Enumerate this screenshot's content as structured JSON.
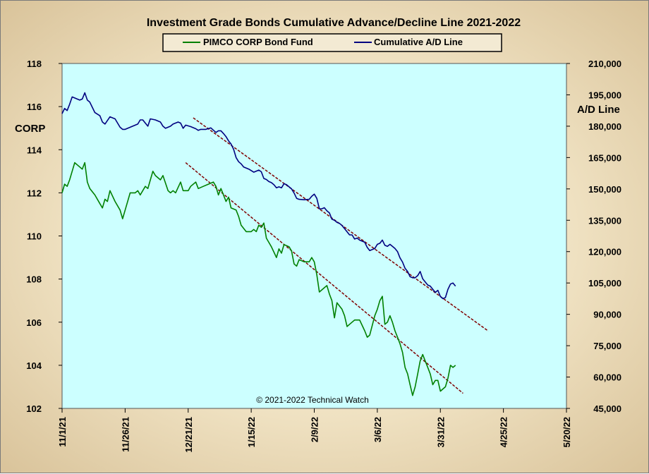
{
  "chart_data": {
    "type": "line",
    "title": "Investment  Grade Bonds Cumulative  Advance/Decline  Line 2021-2022",
    "copyright": "© 2021-2022  Technical  Watch",
    "legend_position": "top-center",
    "plot_background": "#ccffff",
    "x_axis": {
      "type": "date",
      "ticks": [
        "11/1/21",
        "11/26/21",
        "12/21/21",
        "1/15/22",
        "2/9/22",
        "3/6/22",
        "3/31/22",
        "4/25/22",
        "5/20/22"
      ],
      "range": [
        "2021-11-01",
        "2022-05-20"
      ]
    },
    "y_left": {
      "label": "CORP",
      "range": [
        102,
        118
      ],
      "ticks": [
        "102",
        "104",
        "106",
        "108",
        "110",
        "112",
        "114",
        "116",
        "118"
      ]
    },
    "y_right": {
      "label": "A/D Line",
      "range": [
        45000,
        210000
      ],
      "ticks": [
        "45,000",
        "60,000",
        "75,000",
        "90,000",
        "105,000",
        "120,000",
        "135,000",
        "150,000",
        "165,000",
        "180,000",
        "195,000",
        "210,000"
      ]
    },
    "series": [
      {
        "name": "PIMCO CORP Bond Fund",
        "axis": "left",
        "color": "#008000",
        "points": [
          [
            "2021-11-01",
            112.0
          ],
          [
            "2021-11-02",
            112.4
          ],
          [
            "2021-11-03",
            112.3
          ],
          [
            "2021-11-04",
            112.6
          ],
          [
            "2021-11-05",
            113.0
          ],
          [
            "2021-11-06",
            113.4
          ],
          [
            "2021-11-08",
            113.2
          ],
          [
            "2021-11-09",
            113.1
          ],
          [
            "2021-11-10",
            113.4
          ],
          [
            "2021-11-11",
            112.5
          ],
          [
            "2021-11-12",
            112.2
          ],
          [
            "2021-11-14",
            111.9
          ],
          [
            "2021-11-16",
            111.5
          ],
          [
            "2021-11-17",
            111.3
          ],
          [
            "2021-11-18",
            111.7
          ],
          [
            "2021-11-19",
            111.6
          ],
          [
            "2021-11-20",
            112.1
          ],
          [
            "2021-11-22",
            111.6
          ],
          [
            "2021-11-24",
            111.2
          ],
          [
            "2021-11-25",
            110.8
          ],
          [
            "2021-11-26",
            111.2
          ],
          [
            "2021-11-28",
            112.0
          ],
          [
            "2021-11-30",
            112.0
          ],
          [
            "2021-12-01",
            112.1
          ],
          [
            "2021-12-02",
            111.9
          ],
          [
            "2021-12-04",
            112.3
          ],
          [
            "2021-12-05",
            112.2
          ],
          [
            "2021-12-07",
            113.0
          ],
          [
            "2021-12-08",
            112.8
          ],
          [
            "2021-12-10",
            112.6
          ],
          [
            "2021-12-11",
            112.8
          ],
          [
            "2021-12-13",
            112.1
          ],
          [
            "2021-12-14",
            112.0
          ],
          [
            "2021-12-15",
            112.1
          ],
          [
            "2021-12-16",
            112.0
          ],
          [
            "2021-12-18",
            112.5
          ],
          [
            "2021-12-19",
            112.1
          ],
          [
            "2021-12-21",
            112.1
          ],
          [
            "2021-12-22",
            112.3
          ],
          [
            "2021-12-24",
            112.5
          ],
          [
            "2021-12-25",
            112.2
          ],
          [
            "2021-12-27",
            112.3
          ],
          [
            "2021-12-29",
            112.4
          ],
          [
            "2021-12-31",
            112.5
          ],
          [
            "2022-01-01",
            112.3
          ],
          [
            "2022-01-02",
            111.9
          ],
          [
            "2022-01-03",
            112.2
          ],
          [
            "2022-01-05",
            111.6
          ],
          [
            "2022-01-06",
            111.8
          ],
          [
            "2022-01-07",
            111.3
          ],
          [
            "2022-01-09",
            111.2
          ],
          [
            "2022-01-10",
            110.9
          ],
          [
            "2022-01-11",
            110.5
          ],
          [
            "2022-01-13",
            110.2
          ],
          [
            "2022-01-15",
            110.2
          ],
          [
            "2022-01-16",
            110.3
          ],
          [
            "2022-01-17",
            110.2
          ],
          [
            "2022-01-18",
            110.5
          ],
          [
            "2022-01-19",
            110.4
          ],
          [
            "2022-01-20",
            110.6
          ],
          [
            "2022-01-21",
            109.9
          ],
          [
            "2022-01-23",
            109.5
          ],
          [
            "2022-01-25",
            109.0
          ],
          [
            "2022-01-26",
            109.4
          ],
          [
            "2022-01-27",
            109.2
          ],
          [
            "2022-01-28",
            109.6
          ],
          [
            "2022-01-30",
            109.5
          ],
          [
            "2022-01-31",
            109.3
          ],
          [
            "2022-02-01",
            108.7
          ],
          [
            "2022-02-02",
            108.6
          ],
          [
            "2022-02-03",
            108.9
          ],
          [
            "2022-02-05",
            108.8
          ],
          [
            "2022-02-07",
            108.8
          ],
          [
            "2022-02-08",
            109.0
          ],
          [
            "2022-02-09",
            108.8
          ],
          [
            "2022-02-10",
            108.2
          ],
          [
            "2022-02-11",
            107.4
          ],
          [
            "2022-02-13",
            107.6
          ],
          [
            "2022-02-14",
            107.7
          ],
          [
            "2022-02-15",
            107.3
          ],
          [
            "2022-02-16",
            107.0
          ],
          [
            "2022-02-17",
            106.2
          ],
          [
            "2022-02-18",
            106.9
          ],
          [
            "2022-02-20",
            106.6
          ],
          [
            "2022-02-21",
            106.3
          ],
          [
            "2022-02-22",
            105.8
          ],
          [
            "2022-02-23",
            105.9
          ],
          [
            "2022-02-25",
            106.1
          ],
          [
            "2022-02-27",
            106.1
          ],
          [
            "2022-03-01",
            105.6
          ],
          [
            "2022-03-02",
            105.3
          ],
          [
            "2022-03-03",
            105.4
          ],
          [
            "2022-03-05",
            106.3
          ],
          [
            "2022-03-06",
            106.6
          ],
          [
            "2022-03-07",
            107.0
          ],
          [
            "2022-03-08",
            107.2
          ],
          [
            "2022-03-09",
            105.9
          ],
          [
            "2022-03-10",
            106.0
          ],
          [
            "2022-03-11",
            106.3
          ],
          [
            "2022-03-12",
            106.0
          ],
          [
            "2022-03-13",
            105.6
          ],
          [
            "2022-03-14",
            105.3
          ],
          [
            "2022-03-15",
            105.0
          ],
          [
            "2022-03-16",
            104.6
          ],
          [
            "2022-03-17",
            103.9
          ],
          [
            "2022-03-18",
            103.6
          ],
          [
            "2022-03-19",
            103.1
          ],
          [
            "2022-03-20",
            102.6
          ],
          [
            "2022-03-21",
            103.0
          ],
          [
            "2022-03-22",
            103.6
          ],
          [
            "2022-03-23",
            104.2
          ],
          [
            "2022-03-24",
            104.5
          ],
          [
            "2022-03-25",
            104.2
          ],
          [
            "2022-03-26",
            103.9
          ],
          [
            "2022-03-27",
            103.6
          ],
          [
            "2022-03-28",
            103.1
          ],
          [
            "2022-03-29",
            103.3
          ],
          [
            "2022-03-30",
            103.3
          ],
          [
            "2022-03-31",
            102.8
          ],
          [
            "2022-04-01",
            102.9
          ],
          [
            "2022-04-02",
            103.0
          ],
          [
            "2022-04-03",
            103.4
          ],
          [
            "2022-04-04",
            104.0
          ],
          [
            "2022-04-05",
            103.9
          ],
          [
            "2022-04-06",
            104.0
          ]
        ]
      },
      {
        "name": "Cumulative A/D Line",
        "axis": "right",
        "color": "#000080",
        "points": [
          [
            "2021-11-01",
            186000
          ],
          [
            "2021-11-02",
            188500
          ],
          [
            "2021-11-03",
            187500
          ],
          [
            "2021-11-04",
            190500
          ],
          [
            "2021-11-05",
            194000
          ],
          [
            "2021-11-06",
            193500
          ],
          [
            "2021-11-08",
            192500
          ],
          [
            "2021-11-09",
            193000
          ],
          [
            "2021-11-10",
            196000
          ],
          [
            "2021-11-11",
            192500
          ],
          [
            "2021-11-12",
            191500
          ],
          [
            "2021-11-14",
            186500
          ],
          [
            "2021-11-16",
            185000
          ],
          [
            "2021-11-17",
            182000
          ],
          [
            "2021-11-18",
            181000
          ],
          [
            "2021-11-20",
            184500
          ],
          [
            "2021-11-22",
            183500
          ],
          [
            "2021-11-24",
            179500
          ],
          [
            "2021-11-25",
            178500
          ],
          [
            "2021-11-26",
            178500
          ],
          [
            "2021-11-28",
            179500
          ],
          [
            "2021-11-30",
            180500
          ],
          [
            "2021-12-01",
            181000
          ],
          [
            "2021-12-02",
            183000
          ],
          [
            "2021-12-03",
            183000
          ],
          [
            "2021-12-04",
            181500
          ],
          [
            "2021-12-05",
            180000
          ],
          [
            "2021-12-06",
            183500
          ],
          [
            "2021-12-08",
            183000
          ],
          [
            "2021-12-10",
            182000
          ],
          [
            "2021-12-11",
            180000
          ],
          [
            "2021-12-12",
            179000
          ],
          [
            "2021-12-14",
            180000
          ],
          [
            "2021-12-15",
            181000
          ],
          [
            "2021-12-17",
            182000
          ],
          [
            "2021-12-18",
            181500
          ],
          [
            "2021-12-19",
            179000
          ],
          [
            "2021-12-20",
            180500
          ],
          [
            "2021-12-22",
            179800
          ],
          [
            "2021-12-24",
            178800
          ],
          [
            "2021-12-25",
            178000
          ],
          [
            "2021-12-26",
            178500
          ],
          [
            "2021-12-28",
            178500
          ],
          [
            "2021-12-30",
            179200
          ],
          [
            "2022-01-01",
            177000
          ],
          [
            "2022-01-02",
            177800
          ],
          [
            "2022-01-03",
            177800
          ],
          [
            "2022-01-04",
            176500
          ],
          [
            "2022-01-05",
            175000
          ],
          [
            "2022-01-06",
            173000
          ],
          [
            "2022-01-07",
            171500
          ],
          [
            "2022-01-08",
            169000
          ],
          [
            "2022-01-09",
            165000
          ],
          [
            "2022-01-10",
            163000
          ],
          [
            "2022-01-11",
            162000
          ],
          [
            "2022-01-12",
            160500
          ],
          [
            "2022-01-13",
            160000
          ],
          [
            "2022-01-14",
            159500
          ],
          [
            "2022-01-16",
            158000
          ],
          [
            "2022-01-18",
            159000
          ],
          [
            "2022-01-19",
            158200
          ],
          [
            "2022-01-20",
            155000
          ],
          [
            "2022-01-21",
            154500
          ],
          [
            "2022-01-22",
            153500
          ],
          [
            "2022-01-23",
            153000
          ],
          [
            "2022-01-24",
            152000
          ],
          [
            "2022-01-25",
            150500
          ],
          [
            "2022-01-26",
            151000
          ],
          [
            "2022-01-27",
            150500
          ],
          [
            "2022-01-28",
            152500
          ],
          [
            "2022-01-29",
            152000
          ],
          [
            "2022-01-30",
            151000
          ],
          [
            "2022-01-31",
            150000
          ],
          [
            "2022-02-01",
            148000
          ],
          [
            "2022-02-02",
            145500
          ],
          [
            "2022-02-03",
            145000
          ],
          [
            "2022-02-05",
            144800
          ],
          [
            "2022-02-07",
            145000
          ],
          [
            "2022-02-08",
            146500
          ],
          [
            "2022-02-09",
            147500
          ],
          [
            "2022-02-10",
            145500
          ],
          [
            "2022-02-11",
            140500
          ],
          [
            "2022-02-12",
            140500
          ],
          [
            "2022-02-13",
            141000
          ],
          [
            "2022-02-14",
            139500
          ],
          [
            "2022-02-15",
            138500
          ],
          [
            "2022-02-16",
            135500
          ],
          [
            "2022-02-17",
            135000
          ],
          [
            "2022-02-18",
            134000
          ],
          [
            "2022-02-19",
            133500
          ],
          [
            "2022-02-20",
            132500
          ],
          [
            "2022-02-21",
            131000
          ],
          [
            "2022-02-22",
            129500
          ],
          [
            "2022-02-23",
            128000
          ],
          [
            "2022-02-24",
            128000
          ],
          [
            "2022-02-25",
            126000
          ],
          [
            "2022-02-26",
            126500
          ],
          [
            "2022-02-27",
            125500
          ],
          [
            "2022-03-01",
            124500
          ],
          [
            "2022-03-02",
            122000
          ],
          [
            "2022-03-03",
            120500
          ],
          [
            "2022-03-05",
            121500
          ],
          [
            "2022-03-06",
            123500
          ],
          [
            "2022-03-07",
            124000
          ],
          [
            "2022-03-08",
            125500
          ],
          [
            "2022-03-09",
            123000
          ],
          [
            "2022-03-10",
            122500
          ],
          [
            "2022-03-11",
            123500
          ],
          [
            "2022-03-12",
            122500
          ],
          [
            "2022-03-13",
            121500
          ],
          [
            "2022-03-14",
            120000
          ],
          [
            "2022-03-15",
            117000
          ],
          [
            "2022-03-16",
            115000
          ],
          [
            "2022-03-17",
            112000
          ],
          [
            "2022-03-18",
            110500
          ],
          [
            "2022-03-19",
            108000
          ],
          [
            "2022-03-20",
            107500
          ],
          [
            "2022-03-21",
            107500
          ],
          [
            "2022-03-22",
            108500
          ],
          [
            "2022-03-23",
            110500
          ],
          [
            "2022-03-24",
            107000
          ],
          [
            "2022-03-25",
            105500
          ],
          [
            "2022-03-26",
            104000
          ],
          [
            "2022-03-27",
            103500
          ],
          [
            "2022-03-28",
            102000
          ],
          [
            "2022-03-29",
            100500
          ],
          [
            "2022-03-30",
            101500
          ],
          [
            "2022-03-31",
            98500
          ],
          [
            "2022-04-01",
            97500
          ],
          [
            "2022-04-02",
            98000
          ],
          [
            "2022-04-03",
            102000
          ],
          [
            "2022-04-04",
            104500
          ],
          [
            "2022-04-05",
            105000
          ],
          [
            "2022-04-06",
            103500
          ]
        ]
      }
    ],
    "trendlines": [
      {
        "axis": "right",
        "color": "#800000",
        "style": "dashed",
        "from": [
          "2021-12-23",
          184000
        ],
        "to": [
          "2022-04-19",
          82000
        ]
      },
      {
        "axis": "left",
        "color": "#800000",
        "style": "dashed",
        "from": [
          "2021-12-20",
          113.4
        ],
        "to": [
          "2022-04-09",
          102.7
        ]
      }
    ]
  }
}
